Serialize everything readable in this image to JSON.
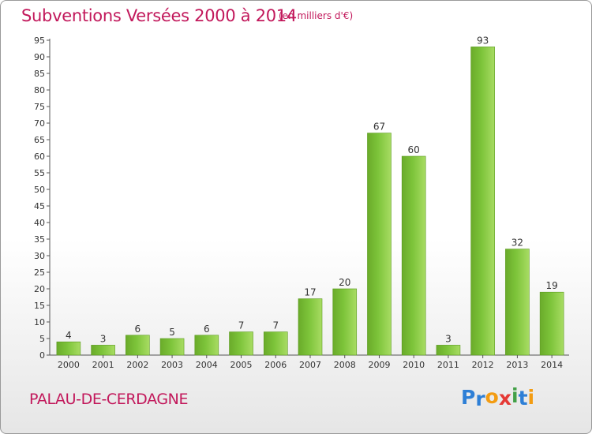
{
  "chart_data": {
    "type": "bar",
    "title": "Subventions Versées 2000 à 2014",
    "subtitle": "(en milliers d'€)",
    "categories": [
      "2000",
      "2001",
      "2002",
      "2003",
      "2004",
      "2005",
      "2006",
      "2007",
      "2008",
      "2009",
      "2010",
      "2011",
      "2012",
      "2013",
      "2014"
    ],
    "values": [
      4,
      3,
      6,
      5,
      6,
      7,
      7,
      17,
      20,
      67,
      60,
      3,
      93,
      32,
      19
    ],
    "ylim": [
      0,
      95
    ],
    "yticks": [
      0,
      5,
      10,
      15,
      20,
      25,
      30,
      35,
      40,
      45,
      50,
      55,
      60,
      65,
      70,
      75,
      80,
      85,
      90,
      95
    ],
    "grid": false,
    "bar_color": "#7dc43a",
    "title_color": "#c2185b"
  },
  "footer": {
    "commune": "PALAU-DE-CERDAGNE",
    "logo_letters": [
      {
        "ch": "P",
        "color": "#2e7fd6"
      },
      {
        "ch": "r",
        "color": "#2e7fd6"
      },
      {
        "ch": "o",
        "color": "#f39c12"
      },
      {
        "ch": "x",
        "color": "#e53935"
      },
      {
        "ch": "i",
        "color": "#43a047"
      },
      {
        "ch": "t",
        "color": "#2e7fd6"
      },
      {
        "ch": "i",
        "color": "#f39c12"
      }
    ]
  }
}
